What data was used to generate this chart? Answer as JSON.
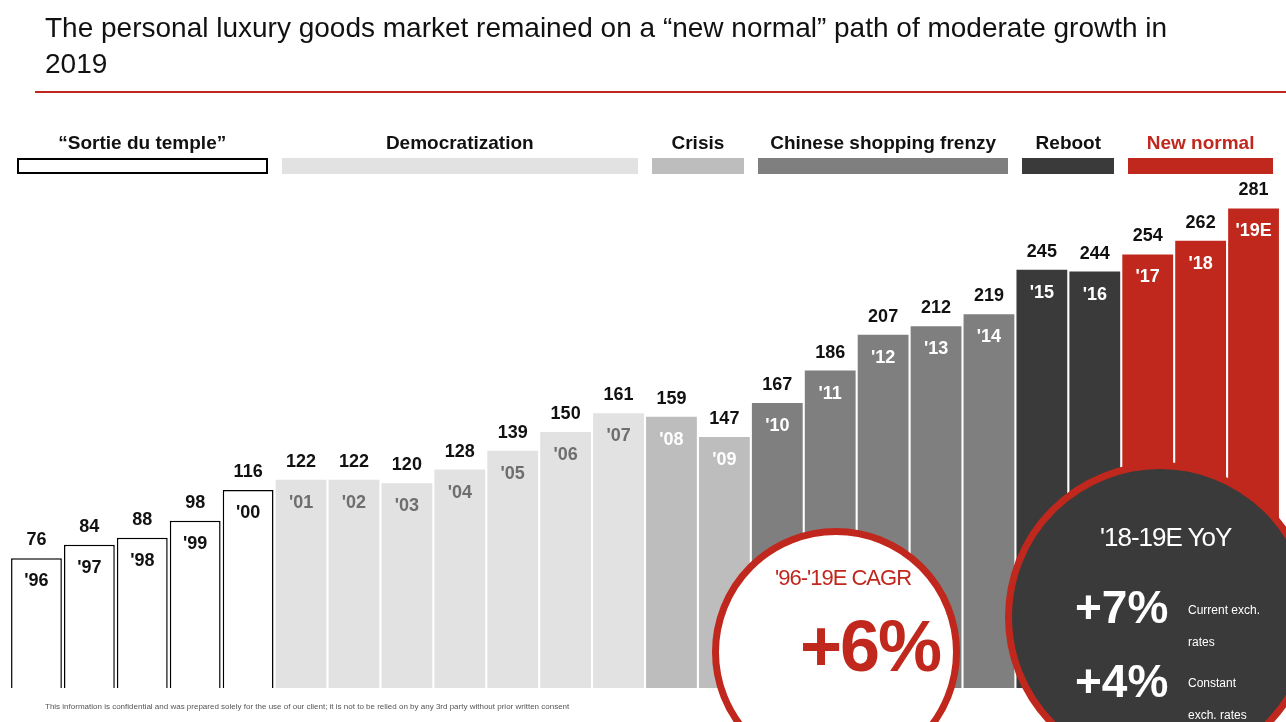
{
  "chart_data": {
    "type": "bar",
    "title": "The personal luxury goods market remained on a “new normal” path of moderate growth in 2019",
    "categories": [
      "'96",
      "'97",
      "'98",
      "'99",
      "'00",
      "'01",
      "'02",
      "'03",
      "'04",
      "'05",
      "'06",
      "'07",
      "'08",
      "'09",
      "'10",
      "'11",
      "'12",
      "'13",
      "'14",
      "'15",
      "'16",
      "'17",
      "'18",
      "'19E"
    ],
    "values": [
      76,
      84,
      88,
      98,
      116,
      122,
      122,
      120,
      128,
      139,
      150,
      161,
      159,
      147,
      167,
      186,
      207,
      212,
      219,
      245,
      244,
      254,
      262,
      281
    ],
    "colors": [
      "#ffffff",
      "#ffffff",
      "#ffffff",
      "#ffffff",
      "#ffffff",
      "#e2e2e2",
      "#e2e2e2",
      "#e2e2e2",
      "#e2e2e2",
      "#e2e2e2",
      "#e2e2e2",
      "#e2e2e2",
      "#bdbdbd",
      "#bdbdbd",
      "#7f7f7f",
      "#7f7f7f",
      "#7f7f7f",
      "#7f7f7f",
      "#7f7f7f",
      "#3a3a3a",
      "#3a3a3a",
      "#c0281e",
      "#c0281e",
      "#c0281e"
    ],
    "tick_labels": "x",
    "data_labels": true,
    "legend": false,
    "annotations": [
      "“Sortie du temple”",
      "Democratization",
      "Crisis",
      "Chinese shopping frenzy",
      "Reboot",
      "New normal",
      "'96-'19E CAGR",
      "+6%",
      "'18-19E YoY",
      "+7%",
      "Current exch. rates",
      "+4%",
      "Constant exch. rates",
      "This information is confidential and was prepared solely for the use of our client; it is not to be relied on by any 3rd party without prior written consent"
    ]
  }
}
